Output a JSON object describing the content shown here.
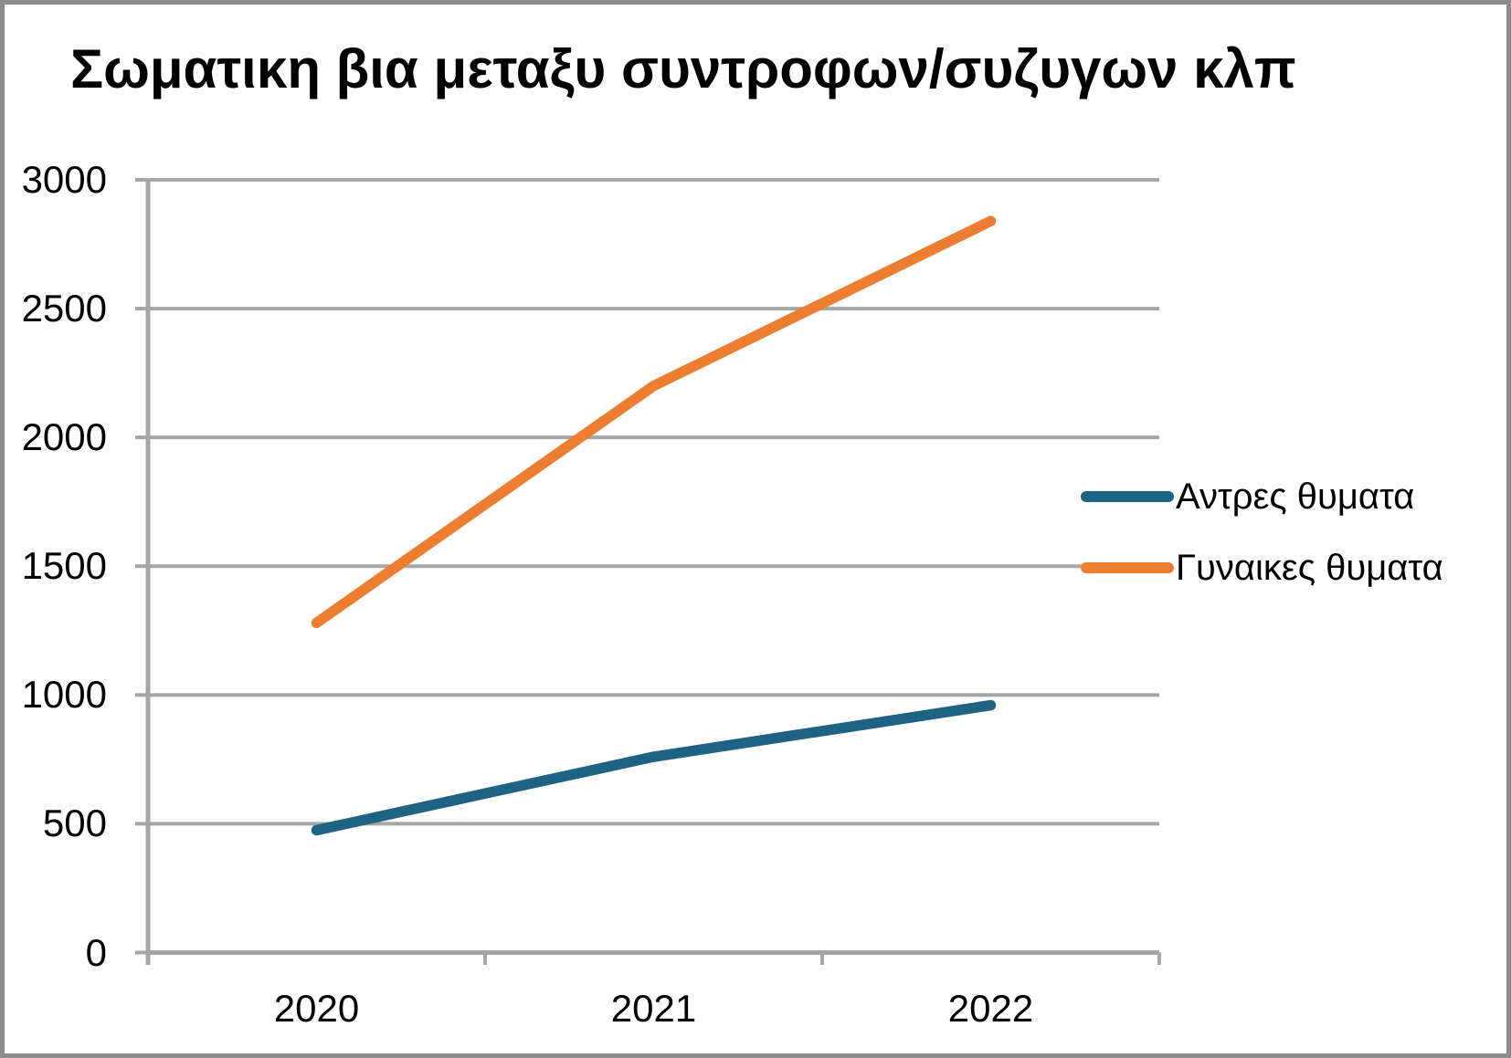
{
  "frame": {
    "background_color": "#FFFFFF",
    "border_color": "#8C8C8C"
  },
  "chart_data": {
    "type": "line",
    "title": "Σωματικη βια μεταξυ συντροφων/συζυγων κλπ",
    "categories": [
      "2020",
      "2021",
      "2022"
    ],
    "series": [
      {
        "name": "Αντρες θυματα",
        "color": "#1E6284",
        "values": [
          475,
          760,
          960
        ]
      },
      {
        "name": "Γυναικες θυματα",
        "color": "#ED7D31",
        "values": [
          1280,
          2200,
          2840
        ]
      }
    ],
    "xlabel": "",
    "ylabel": "",
    "ylim": [
      0,
      3000
    ],
    "ytick_step": 500,
    "ytick_labels": [
      "0",
      "500",
      "1000",
      "1500",
      "2000",
      "2500",
      "3000"
    ],
    "grid": true,
    "gridline_color": "#A6A6A6",
    "axis_color": "#A6A6A6",
    "text_color": "#000000",
    "legend_position": "right"
  }
}
